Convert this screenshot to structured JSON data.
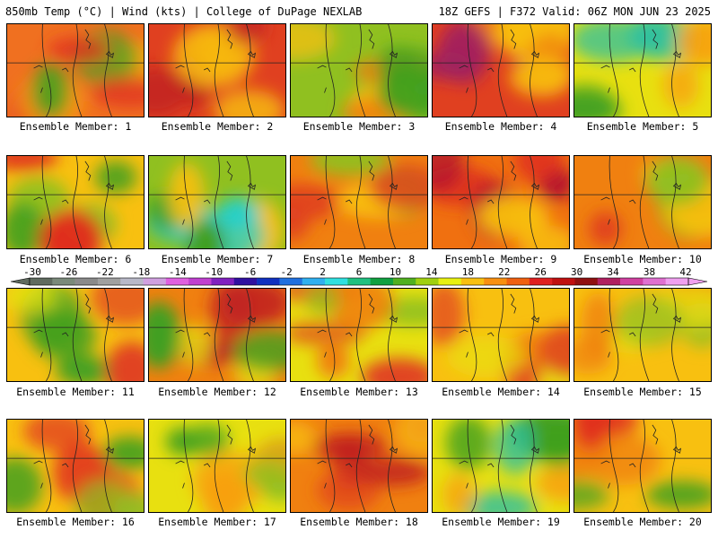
{
  "header": {
    "left_title": "850mb Temp (°C) | Wind (kts) | College of DuPage NEXLAB",
    "right_title": "18Z GEFS | F372 Valid: 06Z MON JUN 23 2025"
  },
  "colorbar": {
    "labels": [
      "-30",
      "-26",
      "-22",
      "-18",
      "-14",
      "-10",
      "-6",
      "-2",
      "2",
      "6",
      "10",
      "14",
      "18",
      "22",
      "26",
      "30",
      "34",
      "38",
      "42"
    ],
    "colors": [
      "#5f6b5f",
      "#7a8a7a",
      "#8a8a8a",
      "#a0a0a0",
      "#b8b8c8",
      "#d0a0e0",
      "#e060e0",
      "#c040d0",
      "#8020c0",
      "#3010a0",
      "#1030c0",
      "#2070e0",
      "#30b0f0",
      "#30e0e0",
      "#20c080",
      "#10a040",
      "#50b020",
      "#a0d010",
      "#e8f010",
      "#f8c010",
      "#f89010",
      "#f06010",
      "#e02020",
      "#c01010",
      "#901010",
      "#b02060",
      "#d040a0",
      "#e070d0",
      "#f0a0f0"
    ]
  },
  "members": [
    {
      "caption": "Ensemble Member: 1",
      "palette": [
        "#f07020",
        "#e03020",
        "#f8a010",
        "#40a020"
      ]
    },
    {
      "caption": "Ensemble Member: 2",
      "palette": [
        "#e04020",
        "#c02020",
        "#f08010",
        "#f8c010"
      ]
    },
    {
      "caption": "Ensemble Member: 3",
      "palette": [
        "#90c020",
        "#40a020",
        "#f8c010",
        "#f08010"
      ]
    },
    {
      "caption": "Ensemble Member: 4",
      "palette": [
        "#e04020",
        "#a02060",
        "#f08010",
        "#f8c010"
      ]
    },
    {
      "caption": "Ensemble Member: 5",
      "palette": [
        "#e8e010",
        "#30c0a0",
        "#40a020",
        "#f8a010"
      ]
    },
    {
      "caption": "Ensemble Member: 6",
      "palette": [
        "#f8c010",
        "#e03020",
        "#90c020",
        "#40a020"
      ]
    },
    {
      "caption": "Ensemble Member: 7",
      "palette": [
        "#90c020",
        "#20d0d0",
        "#40a020",
        "#f8c010"
      ]
    },
    {
      "caption": "Ensemble Member: 8",
      "palette": [
        "#f08010",
        "#e04020",
        "#f8c010",
        "#90c020"
      ]
    },
    {
      "caption": "Ensemble Member: 9",
      "palette": [
        "#f07010",
        "#b01030",
        "#e03020",
        "#f8c010"
      ]
    },
    {
      "caption": "Ensemble Member: 10",
      "palette": [
        "#f08010",
        "#e04020",
        "#f8c010",
        "#90c020"
      ]
    },
    {
      "caption": "Ensemble Member: 11",
      "palette": [
        "#f8c010",
        "#40a020",
        "#e8e010",
        "#e04020"
      ]
    },
    {
      "caption": "Ensemble Member: 12",
      "palette": [
        "#f08010",
        "#c02020",
        "#e8e010",
        "#40a020"
      ]
    },
    {
      "caption": "Ensemble Member: 13",
      "palette": [
        "#e8e010",
        "#e04020",
        "#f08010",
        "#90c020"
      ]
    },
    {
      "caption": "Ensemble Member: 14",
      "palette": [
        "#f8c010",
        "#e04020",
        "#f08010",
        "#e8e010"
      ]
    },
    {
      "caption": "Ensemble Member: 15",
      "palette": [
        "#f8c010",
        "#f08010",
        "#e8e010",
        "#90c020"
      ]
    },
    {
      "caption": "Ensemble Member: 16",
      "palette": [
        "#f8c010",
        "#e03020",
        "#40a020",
        "#90c020"
      ]
    },
    {
      "caption": "Ensemble Member: 17",
      "palette": [
        "#e8e010",
        "#f8a010",
        "#40a020",
        "#90c020"
      ]
    },
    {
      "caption": "Ensemble Member: 18",
      "palette": [
        "#f08010",
        "#c02020",
        "#e04020",
        "#f8c010"
      ]
    },
    {
      "caption": "Ensemble Member: 19",
      "palette": [
        "#e8e010",
        "#40a020",
        "#30c0a0",
        "#f8a010"
      ]
    },
    {
      "caption": "Ensemble Member: 20",
      "palette": [
        "#f8c010",
        "#e03020",
        "#40a020",
        "#f08010"
      ]
    }
  ]
}
